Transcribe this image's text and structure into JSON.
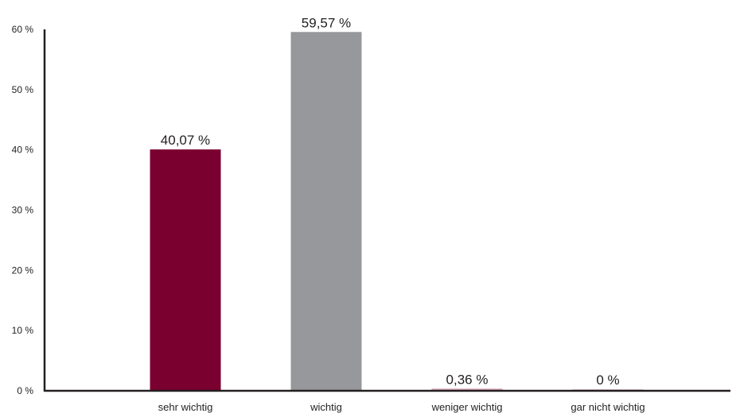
{
  "chart_data": {
    "type": "bar",
    "categories": [
      "sehr wichtig",
      "wichtig",
      "weniger wichtig",
      "gar nicht wichtig"
    ],
    "values": [
      40.07,
      59.57,
      0.36,
      0
    ],
    "value_labels": [
      "40,07 %",
      "59,57 %",
      "0,36 %",
      "0 %"
    ],
    "y_ticks": [
      {
        "value": 0,
        "label": "0 %"
      },
      {
        "value": 10,
        "label": "10 %"
      },
      {
        "value": 20,
        "label": "20 %"
      },
      {
        "value": 30,
        "label": "30 %"
      },
      {
        "value": 40,
        "label": "40 %"
      },
      {
        "value": 50,
        "label": "50 %"
      },
      {
        "value": 60,
        "label": "60 %"
      }
    ],
    "ylim": [
      0,
      60
    ],
    "grid": false,
    "title": "",
    "xlabel": "",
    "ylabel": "",
    "colors": [
      "#7a0030",
      "#97989b",
      "#d7a6b4",
      "#e6cad3"
    ]
  }
}
